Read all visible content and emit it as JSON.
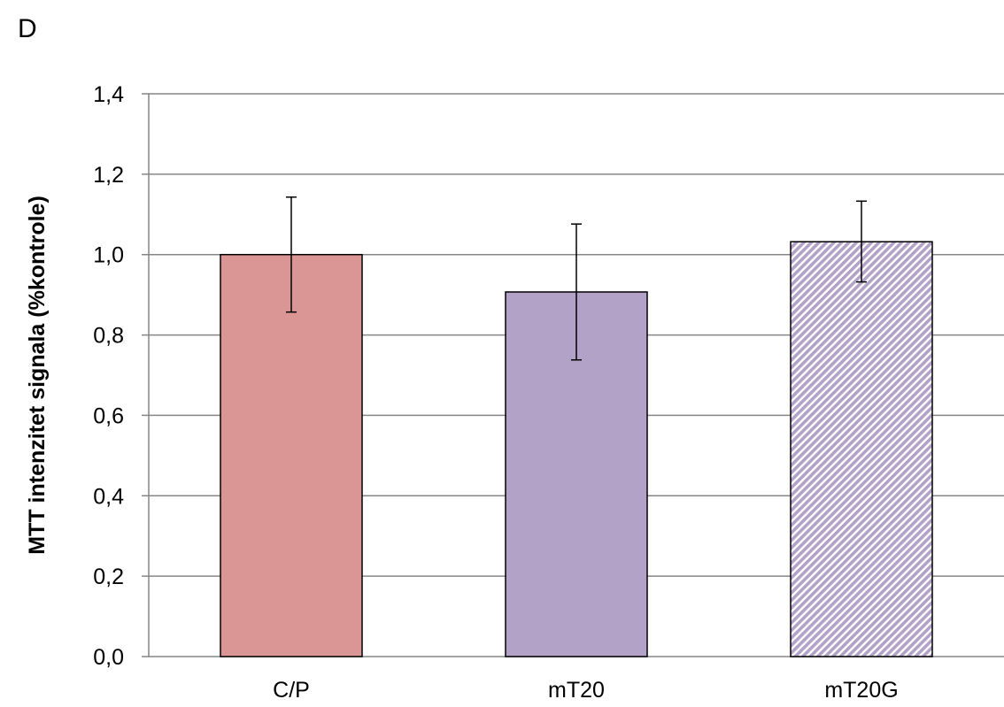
{
  "panel_label": "D",
  "chart_data": {
    "type": "bar",
    "title": "",
    "xlabel": "",
    "ylabel": "MTT intenzitet signala (%kontrole)",
    "ylim": [
      0,
      1.4
    ],
    "yticks": [
      "0,0",
      "0,2",
      "0,4",
      "0,6",
      "0,8",
      "1,0",
      "1,2",
      "1,4"
    ],
    "categories": [
      "C/P",
      "mT20",
      "mT20G"
    ],
    "values": [
      1.0,
      0.907,
      1.032
    ],
    "error_low": [
      0.857,
      0.738,
      0.932
    ],
    "error_high": [
      1.143,
      1.076,
      1.133
    ],
    "colors": [
      "#d99694",
      "#b3a2c7",
      "#b3a2c7"
    ],
    "patterns": [
      "solid",
      "solid",
      "diagonal-hatch"
    ],
    "grid": true,
    "legend": "none"
  }
}
